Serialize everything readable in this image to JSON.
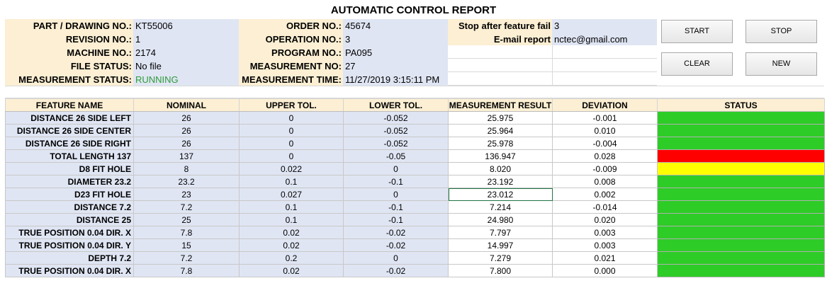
{
  "title": "AUTOMATIC CONTROL REPORT",
  "header": {
    "part_label": "PART / DRAWING NO.:",
    "part_value": "KT55006",
    "revision_label": "REVISION NO.:",
    "revision_value": "1",
    "machine_label": "MACHINE NO.:",
    "machine_value": "2174",
    "file_status_label": "FILE STATUS:",
    "file_status_value": "No file",
    "meas_status_label": "MEASUREMENT STATUS:",
    "meas_status_value": "RUNNING",
    "order_label": "ORDER NO.:",
    "order_value": "45674",
    "operation_label": "OPERATION NO.:",
    "operation_value": "3",
    "program_label": "PROGRAM NO.:",
    "program_value": "PA095",
    "meas_no_label": "MEASUREMENT NO:",
    "meas_no_value": "27",
    "meas_time_label": "MEASUREMENT TIME:",
    "meas_time_value": "11/27/2019  3:15:11 PM",
    "stop_label": "Stop after feature fail",
    "stop_value": "3",
    "email_label": "E-mail report",
    "email_value": "nctec@gmail.com"
  },
  "buttons": {
    "start": "START",
    "stop": "STOP",
    "clear": "CLEAR",
    "new": "NEW"
  },
  "columns": [
    "FEATURE NAME",
    "NOMINAL",
    "UPPER TOL.",
    "LOWER TOL.",
    "MEASUREMENT RESULT",
    "DEVIATION",
    "STATUS"
  ],
  "status_colors": {
    "ok": "#2ecc27",
    "fail": "#ff0000",
    "warning": "#ffff00"
  },
  "rows": [
    {
      "feature": "DISTANCE 26 SIDE LEFT",
      "nominal": "26",
      "upper": "0",
      "lower": "-0.052",
      "result": "25.975",
      "deviation": "-0.001",
      "status": "ok"
    },
    {
      "feature": "DISTANCE 26 SIDE CENTER",
      "nominal": "26",
      "upper": "0",
      "lower": "-0.052",
      "result": "25.964",
      "deviation": "0.010",
      "status": "ok"
    },
    {
      "feature": "DISTANCE 26 SIDE  RIGHT",
      "nominal": "26",
      "upper": "0",
      "lower": "-0.052",
      "result": "25.978",
      "deviation": "-0.004",
      "status": "ok"
    },
    {
      "feature": "TOTAL LENGTH 137",
      "nominal": "137",
      "upper": "0",
      "lower": "-0.05",
      "result": "136.947",
      "deviation": "0.028",
      "status": "fail"
    },
    {
      "feature": "D8 FIT HOLE",
      "nominal": "8",
      "upper": "0.022",
      "lower": "0",
      "result": "8.020",
      "deviation": "-0.009",
      "status": "warning"
    },
    {
      "feature": "DIAMETER 23.2",
      "nominal": "23.2",
      "upper": "0.1",
      "lower": "-0.1",
      "result": "23.192",
      "deviation": "0.008",
      "status": "ok"
    },
    {
      "feature": "D23 FIT HOLE",
      "nominal": "23",
      "upper": "0.027",
      "lower": "0",
      "result": "23.012",
      "deviation": "0.002",
      "status": "ok"
    },
    {
      "feature": "DISTANCE 7.2",
      "nominal": "7.2",
      "upper": "0.1",
      "lower": "-0.1",
      "result": "7.214",
      "deviation": "-0.014",
      "status": "ok"
    },
    {
      "feature": "DISTANCE 25",
      "nominal": "25",
      "upper": "0.1",
      "lower": "-0.1",
      "result": "24.980",
      "deviation": "0.020",
      "status": "ok"
    },
    {
      "feature": "TRUE POSITION   0.04 DIR. X",
      "nominal": "7.8",
      "upper": "0.02",
      "lower": "-0.02",
      "result": "7.797",
      "deviation": "0.003",
      "status": "ok"
    },
    {
      "feature": "TRUE POSITION   0.04 DIR. Y",
      "nominal": "15",
      "upper": "0.02",
      "lower": "-0.02",
      "result": "14.997",
      "deviation": "0.003",
      "status": "ok"
    },
    {
      "feature": "DEPTH 7.2",
      "nominal": "7.2",
      "upper": "0.2",
      "lower": "0",
      "result": "7.279",
      "deviation": "0.021",
      "status": "ok"
    },
    {
      "feature": "TRUE POSITION   0.04 DIR. X",
      "nominal": "7.8",
      "upper": "0.02",
      "lower": "-0.02",
      "result": "7.800",
      "deviation": "0.000",
      "status": "ok"
    }
  ]
}
